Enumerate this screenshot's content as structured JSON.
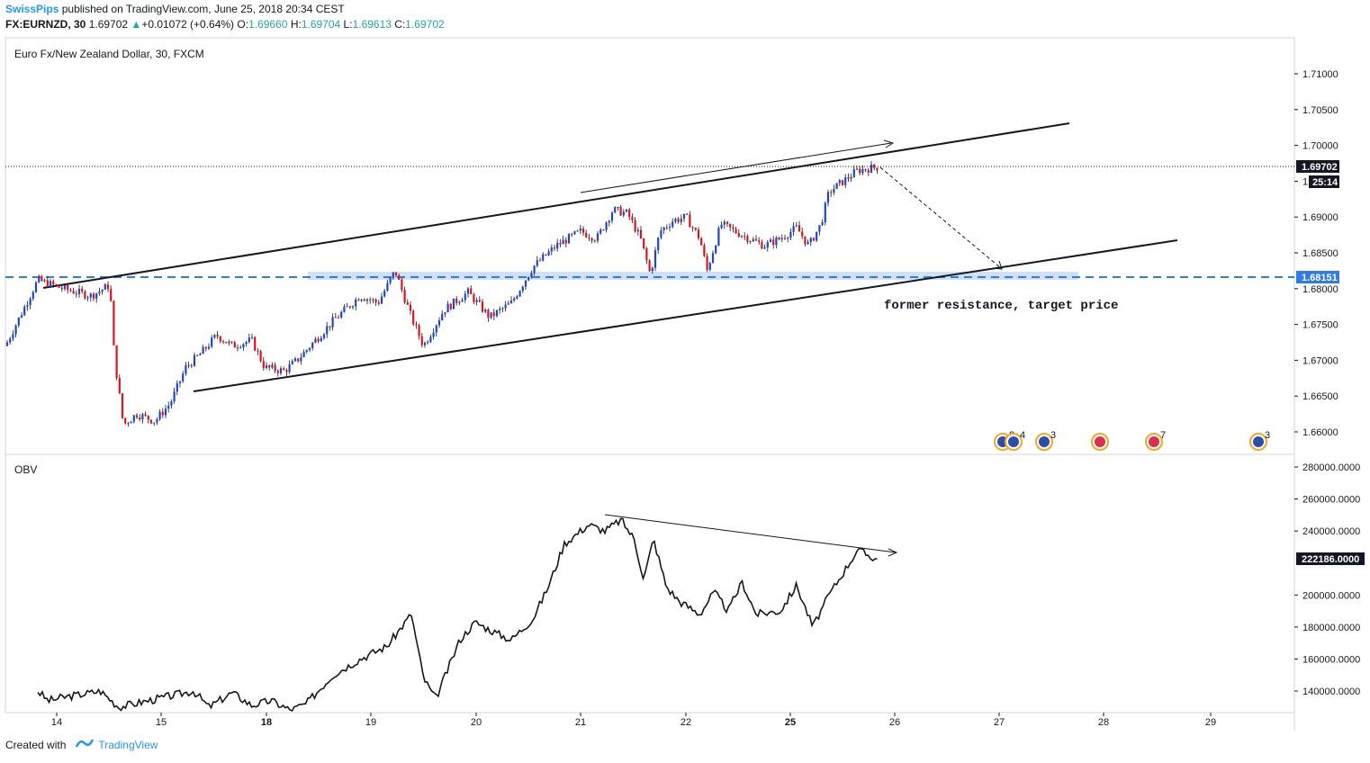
{
  "header": {
    "author": "SwissPips",
    "published": "published on TradingView.com, June 25, 2018 20:34 CEST",
    "symbol": "FX:EURNZD, 30",
    "last": "1.69702",
    "change": "+0.01072 (+0.64%)",
    "open_label": "O:",
    "open": "1.69660",
    "high_label": "H:",
    "high": "1.69704",
    "low_label": "L:",
    "low": "1.69613",
    "close_label": "C:",
    "close": "1.69702"
  },
  "footer": {
    "created_with": "Created with",
    "brand": "TradingView"
  },
  "colors": {
    "up": "#1c47c9",
    "down": "#e0121a",
    "level": "#2f7de1",
    "zone": "#cfe0f7",
    "text": "#131722"
  },
  "chart_data": {
    "type": "candlestick",
    "title": "Euro Fx/New Zealand Dollar, 30, FXCM",
    "x_tick_labels": [
      "14",
      "15",
      "18",
      "19",
      "20",
      "21",
      "22",
      "25",
      "26",
      "27",
      "28",
      "29"
    ],
    "x_tick_bold": [
      "18",
      "25"
    ],
    "price_axis": {
      "ticks": [
        "1.71000",
        "1.70500",
        "1.70000",
        "1.69500",
        "1.69000",
        "1.68500",
        "1.68000",
        "1.67500",
        "1.67000",
        "1.66500",
        "1.66000"
      ],
      "range": [
        1.6575,
        1.7135
      ],
      "last_price_label": "1.69702",
      "countdown_label": "25:14",
      "level_label": "1.68151"
    },
    "price_series": [
      [
        "13",
        1.672
      ],
      [
        "13.5",
        1.6812
      ],
      [
        "14",
        1.68
      ],
      [
        "14.3",
        1.679
      ],
      [
        "14.5",
        1.6805
      ],
      [
        "14.55",
        1.6705
      ],
      [
        "14.65",
        1.661
      ],
      [
        "14.8",
        1.6625
      ],
      [
        "15",
        1.6615
      ],
      [
        "15.2",
        1.664
      ],
      [
        "15.4",
        1.669
      ],
      [
        "15.6",
        1.671
      ],
      [
        "15.8",
        1.6735
      ],
      [
        "16",
        1.672
      ],
      [
        "16.3",
        1.6728
      ],
      [
        "16.5",
        1.669
      ],
      [
        "16.8",
        1.6685
      ],
      [
        "17",
        1.67
      ],
      [
        "17.4",
        1.6755
      ],
      [
        "17.7",
        1.679
      ],
      [
        "17.9",
        1.678
      ],
      [
        "18.1",
        1.6825
      ],
      [
        "18.3",
        1.676
      ],
      [
        "18.45",
        1.672
      ],
      [
        "18.7",
        1.677
      ],
      [
        "19",
        1.6795
      ],
      [
        "19.3",
        1.676
      ],
      [
        "19.6",
        1.678
      ],
      [
        "19.9",
        1.683
      ],
      [
        "20.2",
        1.686
      ],
      [
        "20.5",
        1.688
      ],
      [
        "20.7",
        1.687
      ],
      [
        "20.9",
        1.691
      ],
      [
        "21.1",
        1.6905
      ],
      [
        "21.3",
        1.687
      ],
      [
        "21.45",
        1.682
      ],
      [
        "21.6",
        1.688
      ],
      [
        "21.8",
        1.6895
      ],
      [
        "22",
        1.69
      ],
      [
        "22.2",
        1.687
      ],
      [
        "22.3",
        1.6825
      ],
      [
        "22.5",
        1.689
      ],
      [
        "22.7",
        1.688
      ],
      [
        "22.9",
        1.687
      ],
      [
        "23.1",
        1.686
      ],
      [
        "23.3",
        1.687
      ],
      [
        "23.5",
        1.6885
      ],
      [
        "23.65",
        1.686
      ],
      [
        "23.8",
        1.689
      ],
      [
        "23.9",
        1.6935
      ],
      [
        "24.1",
        1.6965
      ],
      [
        "24.2",
        1.697
      ]
    ],
    "indicator": {
      "name": "OBV",
      "ticks": [
        "280000.0000",
        "260000.0000",
        "240000.0000",
        "222186.0000",
        "200000.0000",
        "180000.0000",
        "160000.0000",
        "140000.0000"
      ],
      "last_value_label": "222186.0000",
      "range": [
        127000,
        287000
      ],
      "series": [
        [
          "13.5",
          140000
        ],
        [
          "13.7",
          134000
        ],
        [
          "14",
          136000
        ],
        [
          "14.4",
          140000
        ],
        [
          "14.6",
          130000
        ],
        [
          "15.5",
          140000
        ],
        [
          "15.7",
          130000
        ],
        [
          "16",
          139000
        ],
        [
          "16.3",
          131000
        ],
        [
          "16.6",
          134000
        ],
        [
          "16.9",
          128000
        ],
        [
          "17.1",
          132000
        ],
        [
          "17.4",
          150000
        ],
        [
          "17.7",
          160000
        ],
        [
          "18",
          168000
        ],
        [
          "18.3",
          188000
        ],
        [
          "18.45",
          148000
        ],
        [
          "18.6",
          135000
        ],
        [
          "18.9",
          172000
        ],
        [
          "19.1",
          183000
        ],
        [
          "19.4",
          176000
        ],
        [
          "19.6",
          172000
        ],
        [
          "19.9",
          185000
        ],
        [
          "20.1",
          205000
        ],
        [
          "20.3",
          232000
        ],
        [
          "20.6",
          244000
        ],
        [
          "20.8",
          240000
        ],
        [
          "21",
          247000
        ],
        [
          "21.2",
          235000
        ],
        [
          "21.35",
          210000
        ],
        [
          "21.5",
          235000
        ],
        [
          "21.7",
          205000
        ],
        [
          "21.9",
          196000
        ],
        [
          "22.2",
          188000
        ],
        [
          "22.4",
          202000
        ],
        [
          "22.6",
          190000
        ],
        [
          "22.8",
          208000
        ],
        [
          "23",
          188000
        ],
        [
          "23.3",
          190000
        ],
        [
          "23.5",
          206000
        ],
        [
          "23.7",
          180000
        ],
        [
          "23.9",
          200000
        ],
        [
          "24.1",
          228000
        ],
        [
          "24.2",
          222186
        ]
      ]
    },
    "drawings": {
      "channel": "ascending channel (upper and lower trend lines)",
      "level": "horizontal support 1.68151 with shaded zone",
      "annotation": "former resistance, target price",
      "price_arrow": "rising highs arrow along upper trend line",
      "projection": "dashed arrow projecting down to 1.68151 zone",
      "obv_arrow": "falling highs arrow on OBV (bearish divergence)"
    },
    "events": [
      {
        "icon": "flag-event-icon",
        "count": "8"
      },
      {
        "icon": "flag-event-icon",
        "count": "4"
      },
      {
        "icon": "flag-event-icon",
        "count": "3"
      },
      {
        "icon": "flag-event-icon",
        "count": ""
      },
      {
        "icon": "flag-event-icon",
        "count": "7"
      },
      {
        "icon": "flag-event-icon",
        "count": "3"
      }
    ]
  }
}
